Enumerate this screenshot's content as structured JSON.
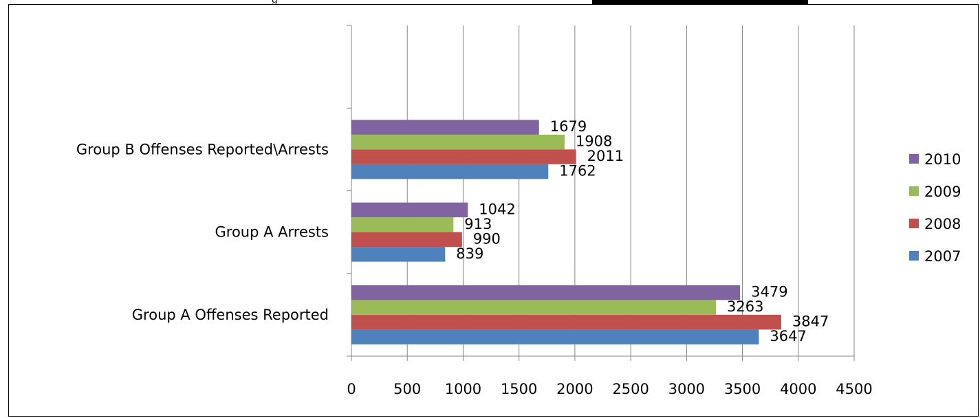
{
  "chart_data": {
    "type": "bar",
    "orientation": "horizontal",
    "title": "",
    "xlabel": "",
    "ylabel": "",
    "categories": [
      "Group A Offenses Reported",
      "Group A Arrests",
      "Group B Offenses Reported\\Arrests"
    ],
    "series": [
      {
        "name": "2007",
        "color": "#4f81bd",
        "values": [
          3647,
          839,
          1762
        ]
      },
      {
        "name": "2008",
        "color": "#c0504d",
        "values": [
          3847,
          990,
          2011
        ]
      },
      {
        "name": "2009",
        "color": "#9bbb59",
        "values": [
          3263,
          913,
          1908
        ]
      },
      {
        "name": "2010",
        "color": "#8064a2",
        "values": [
          3479,
          1042,
          1679
        ]
      }
    ],
    "xlim": [
      0,
      4500
    ],
    "xticks": [
      "0",
      "500",
      "1000",
      "1500",
      "2000",
      "2500",
      "3000",
      "3500",
      "4000",
      "4500"
    ],
    "grid": true,
    "legend_position": "right",
    "legend_order": [
      "2010",
      "2009",
      "2008",
      "2007"
    ],
    "data_labels": true
  }
}
